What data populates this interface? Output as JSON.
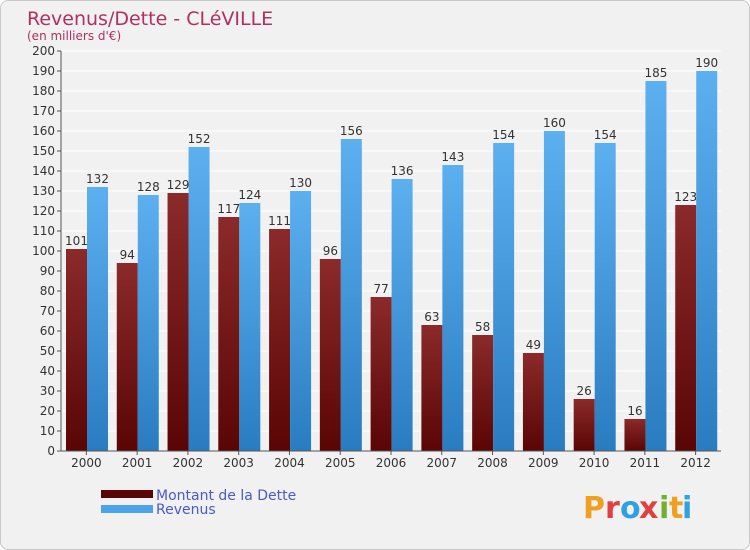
{
  "chart_data": {
    "type": "bar",
    "title": "Revenus/Dette - CLéVILLE",
    "subtitle": "(en milliers d'€)",
    "categories": [
      "2000",
      "2001",
      "2002",
      "2003",
      "2004",
      "2005",
      "2006",
      "2007",
      "2008",
      "2009",
      "2010",
      "2011",
      "2012"
    ],
    "series": [
      {
        "name": "Montant de la Dette",
        "color": "#7a1a1a",
        "values": [
          101,
          94,
          129,
          117,
          111,
          96,
          77,
          63,
          58,
          49,
          26,
          16,
          123
        ]
      },
      {
        "name": "Revenus",
        "color": "#4da3e8",
        "values": [
          132,
          128,
          152,
          124,
          130,
          156,
          136,
          143,
          154,
          160,
          154,
          185,
          190
        ]
      }
    ],
    "ylim": [
      0,
      200
    ],
    "ytick_step": 10,
    "grid": true,
    "legend": "bottom-left"
  },
  "logo": {
    "letters": [
      "P",
      "r",
      "o",
      "x",
      "i",
      "t",
      "i"
    ],
    "colors": [
      "#f0a020",
      "#e04040",
      "#30a0e0",
      "#e04040",
      "#70b030",
      "#f0a020",
      "#30a0e0"
    ]
  }
}
